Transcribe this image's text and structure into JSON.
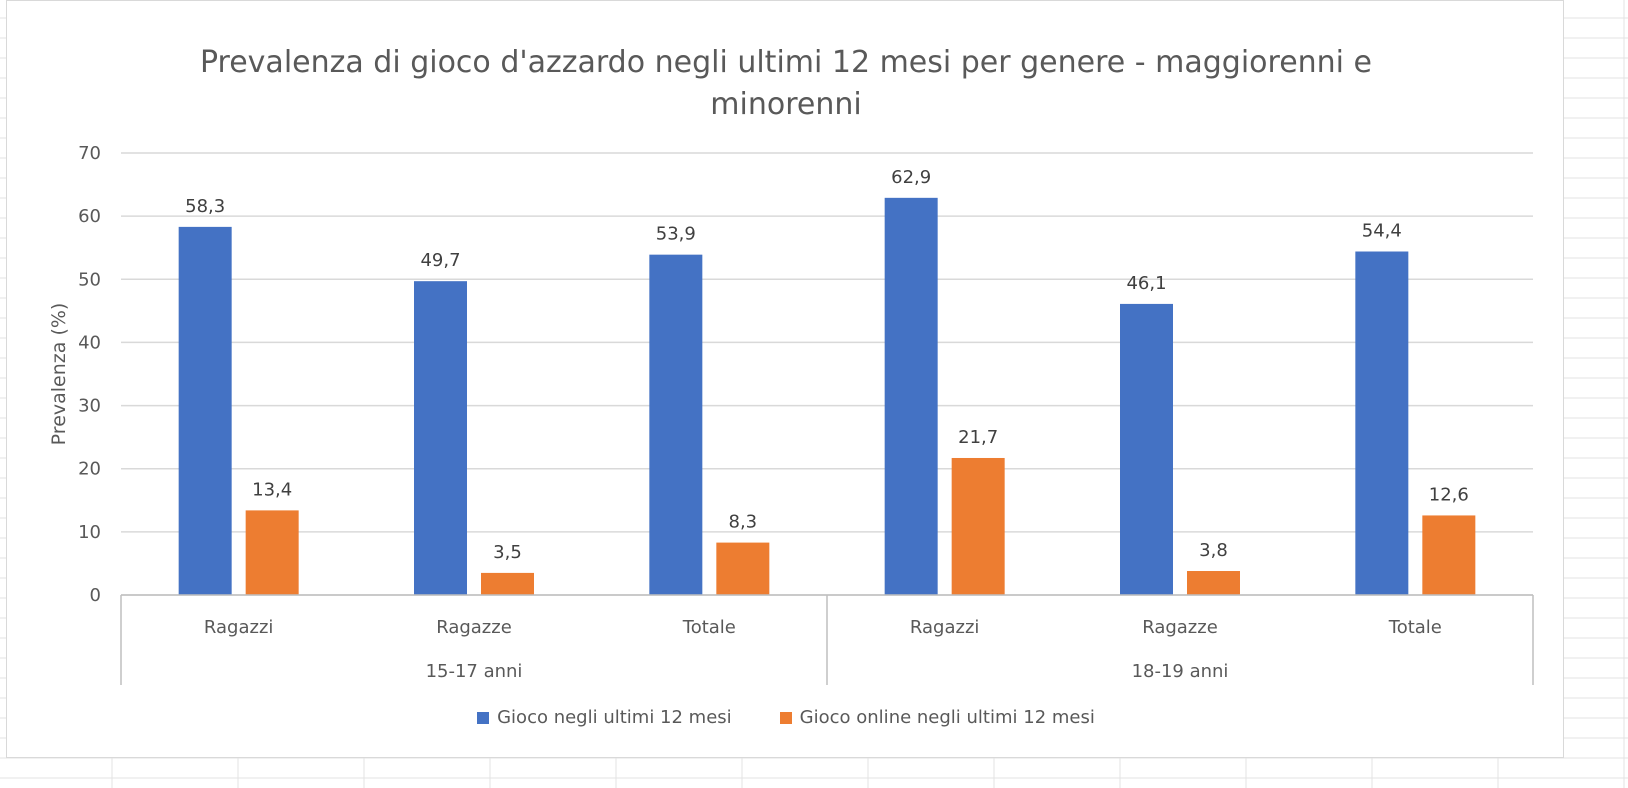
{
  "chart_data": {
    "type": "bar",
    "title_lines": [
      "Prevalenza di gioco d'azzardo negli ultimi 12 mesi per genere - maggiorenni e",
      "minorenni"
    ],
    "ylabel": "Prevalenza (%)",
    "ylim": [
      0,
      70
    ],
    "yticks": [
      "0",
      "10",
      "20",
      "30",
      "40",
      "50",
      "60",
      "70"
    ],
    "grid": true,
    "legend_position": "bottom",
    "groups": [
      {
        "label": "15-17 anni",
        "categories": [
          "Ragazzi",
          "Ragazze",
          "Totale"
        ]
      },
      {
        "label": "18-19 anni",
        "categories": [
          "Ragazzi",
          "Ragazze",
          "Totale"
        ]
      }
    ],
    "categories": [
      "Ragazzi",
      "Ragazze",
      "Totale",
      "Ragazzi",
      "Ragazze",
      "Totale"
    ],
    "series": [
      {
        "name": "Gioco negli ultimi 12 mesi",
        "color": "#4472C4",
        "values": [
          58.3,
          49.7,
          53.9,
          62.9,
          46.1,
          54.4
        ],
        "labels": [
          "58,3",
          "49,7",
          "53,9",
          "62,9",
          "46,1",
          "54,4"
        ]
      },
      {
        "name": "Gioco online negli ultimi 12 mesi",
        "color": "#ED7D31",
        "values": [
          13.4,
          3.5,
          8.3,
          21.7,
          3.8,
          12.6
        ],
        "labels": [
          "13,4",
          "3,5",
          "8,3",
          "21,7",
          "3,8",
          "12,6"
        ]
      }
    ]
  }
}
